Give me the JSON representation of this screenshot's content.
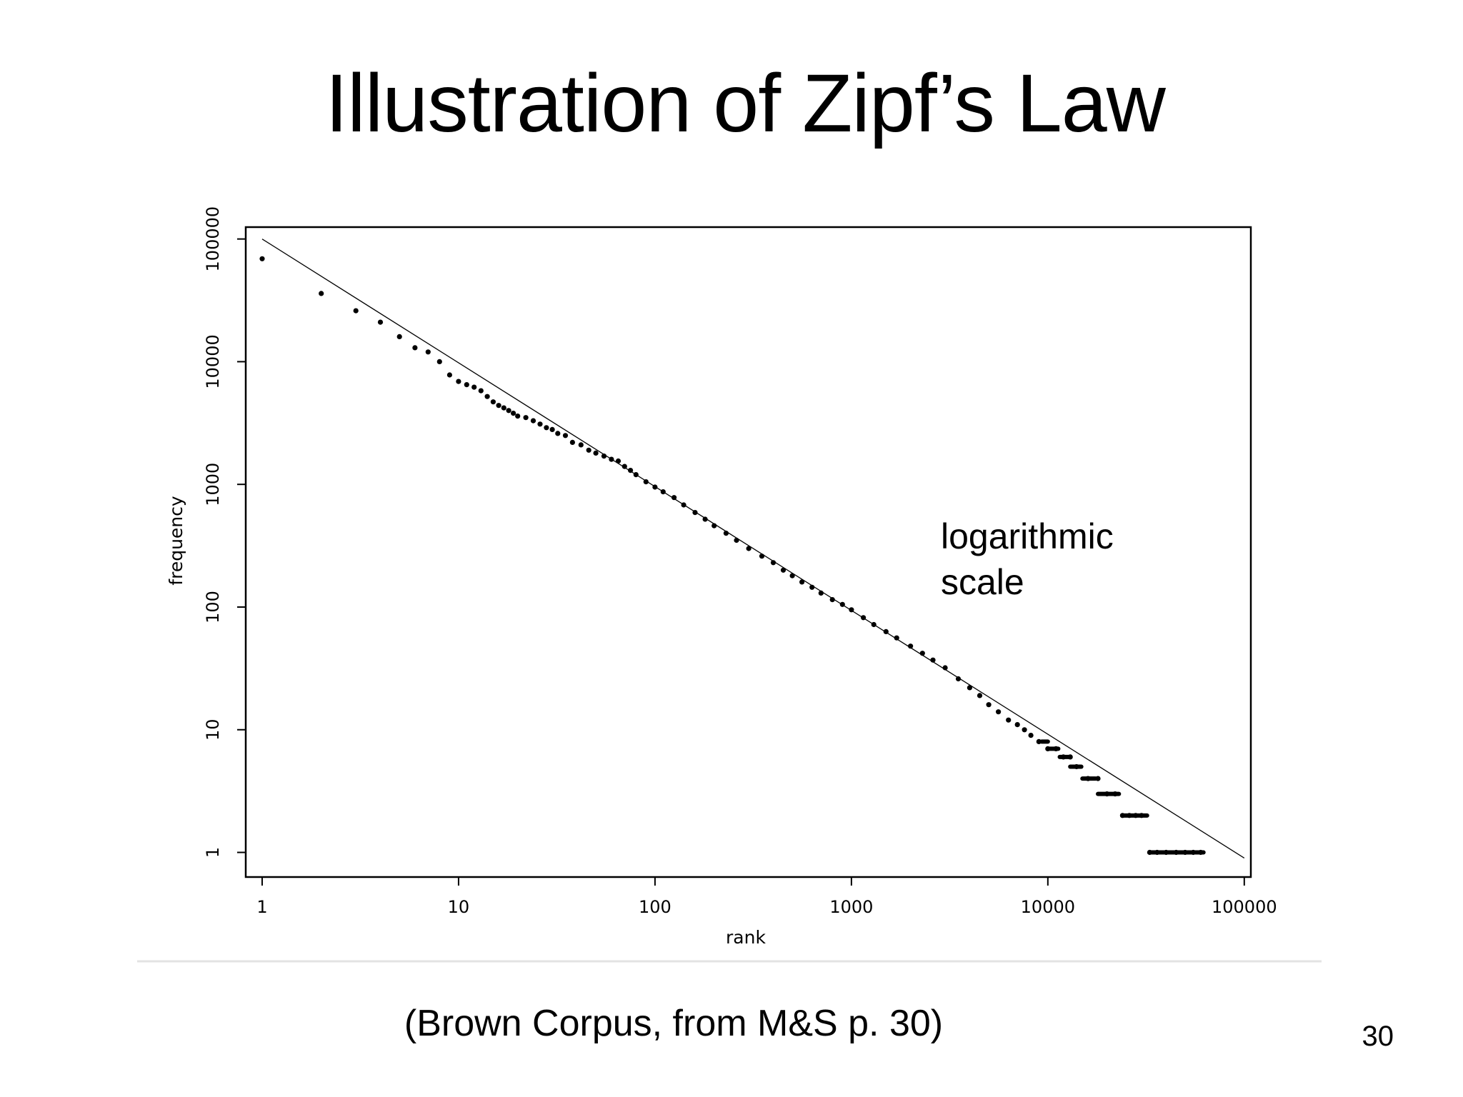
{
  "slide": {
    "title": "Illustration of Zipf’s Law",
    "caption": "(Brown Corpus, from M&S p. 30)",
    "page_number": "30"
  },
  "chart_data": {
    "type": "scatter",
    "title": "",
    "xlabel": "rank",
    "ylabel": "frequency",
    "xscale": "log",
    "yscale": "log",
    "xlim": [
      0.825,
      108000
    ],
    "ylim": [
      0.63,
      125000
    ],
    "x_ticks": [
      1,
      10,
      100,
      1000,
      10000,
      100000
    ],
    "x_tick_labels": [
      "1",
      "10",
      "100",
      "1000",
      "10000",
      "100000"
    ],
    "y_ticks": [
      1,
      10,
      100,
      1000,
      10000,
      100000
    ],
    "y_tick_labels": [
      "1",
      "10",
      "100",
      "1000",
      "10000",
      "100000"
    ],
    "grid": false,
    "annotation": [
      "logarithmic",
      "scale"
    ],
    "fit_line": {
      "x": [
        1,
        100000
      ],
      "y": [
        100000,
        0.9
      ]
    },
    "series": [
      {
        "x": [
          1,
          2,
          3,
          4,
          5,
          6,
          7,
          8,
          9,
          10,
          11,
          12,
          13,
          14,
          15,
          16,
          17,
          18,
          19,
          20,
          22,
          24,
          26,
          28,
          30,
          32,
          35,
          38,
          42,
          46,
          50,
          55,
          60,
          65,
          70,
          75,
          80,
          90,
          100,
          110,
          125,
          140,
          160,
          180,
          200,
          230,
          260,
          300,
          350,
          400,
          450,
          500,
          560,
          630,
          700,
          800,
          900,
          1000,
          1150,
          1300,
          1500,
          1700,
          2000,
          2300,
          2600,
          3000,
          3500,
          4000,
          4500,
          5000,
          5600,
          6300,
          7000,
          7600,
          8200,
          9000,
          10000,
          11000,
          12000,
          13000,
          14000,
          16000,
          18000,
          20000,
          22000,
          24000,
          26000,
          28000,
          30000,
          33000,
          36000,
          40000,
          45000,
          50000,
          55000,
          60000
        ],
        "y": [
          69000,
          36000,
          26000,
          21000,
          16000,
          13000,
          12000,
          10000,
          7800,
          6900,
          6500,
          6200,
          5800,
          5200,
          4700,
          4400,
          4200,
          4000,
          3800,
          3600,
          3500,
          3300,
          3100,
          2900,
          2800,
          2600,
          2500,
          2200,
          2100,
          1900,
          1800,
          1700,
          1600,
          1550,
          1400,
          1300,
          1200,
          1050,
          950,
          870,
          780,
          680,
          590,
          520,
          460,
          400,
          350,
          300,
          260,
          230,
          200,
          180,
          160,
          145,
          130,
          115,
          105,
          95,
          82,
          72,
          63,
          56,
          48,
          42,
          37,
          32,
          26,
          22,
          19,
          16,
          14,
          12,
          11,
          10,
          9,
          8,
          7,
          7,
          6,
          6,
          5,
          4,
          4,
          3,
          3,
          2,
          2,
          2,
          2,
          1,
          1,
          1,
          1,
          1,
          1,
          1
        ]
      }
    ]
  }
}
